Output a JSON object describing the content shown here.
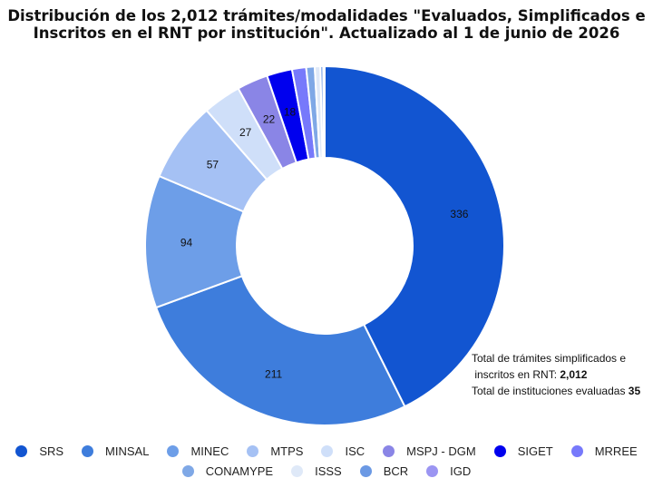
{
  "chart_data": {
    "type": "pie",
    "title_line1": "Distribución de los 2,012 trámites/modalidades \"Evaluados, Simplificados e",
    "title_line2": "Inscritos en el RNT por institución\".  Actualizado al 1 de junio de 2026",
    "donut": true,
    "legend_position": "bottom",
    "categories": [
      "SRS",
      "MINSAL",
      "MINEC",
      "MTPS",
      "ISC",
      "MSPJ - DGM",
      "SIGET",
      "MRREE",
      "CONAMYPE",
      "ISSS",
      "BCR",
      "IGD"
    ],
    "values": [
      336,
      211,
      94,
      57,
      27,
      22,
      18,
      10,
      6,
      4,
      2,
      1
    ],
    "data_labels": [
      "336",
      "211",
      "94",
      "57",
      "27",
      "22",
      "18",
      "",
      "",
      "",
      "",
      ""
    ],
    "colors": [
      "#1255d1",
      "#3e7ddc",
      "#6d9ee8",
      "#a5c1f4",
      "#cfdff9",
      "#8a85e6",
      "#0000ee",
      "#7779fb",
      "#7fa8e6",
      "#dfe9f8",
      "#6b99e4",
      "#9b95f2"
    ]
  },
  "note": {
    "line1": "Total de trámites simplificados e",
    "line2_text": "inscritos en RNT: ",
    "line2_value": "2,012",
    "line3_text": "Total de instituciones evaluadas ",
    "line3_value": "35"
  }
}
